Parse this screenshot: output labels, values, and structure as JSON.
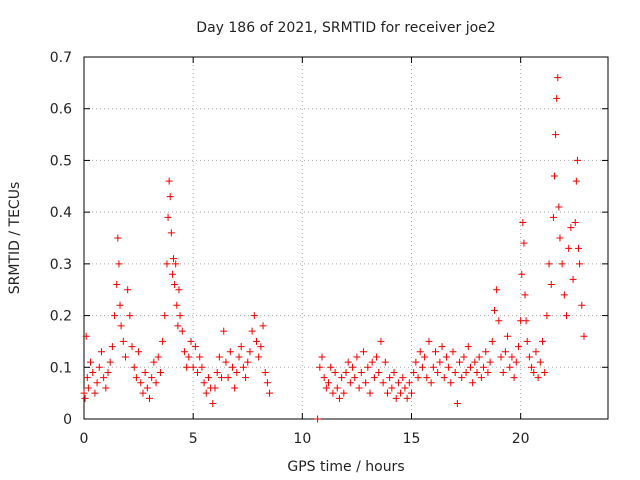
{
  "chart_data": {
    "type": "scatter",
    "title": "Day 186 of 2021, SRMTID for receiver joe2",
    "xlabel": "GPS time / hours",
    "ylabel": "SRMTID / TECUs",
    "xlim": [
      0,
      24
    ],
    "ylim": [
      0,
      0.7
    ],
    "xticks": [
      0,
      5,
      10,
      15,
      20
    ],
    "xtick_labels": [
      "0",
      "5",
      "10",
      "15",
      "20"
    ],
    "yticks": [
      0,
      0.1,
      0.2,
      0.3,
      0.4,
      0.5,
      0.6,
      0.7
    ],
    "ytick_labels": [
      "0",
      "0.1",
      "0.2",
      "0.3",
      "0.4",
      "0.5",
      "0.6",
      "0.7"
    ],
    "grid": true,
    "series": [
      {
        "name": "SRMTID",
        "marker": "+",
        "color": "#ee0000",
        "x": [
          0.0,
          0.05,
          0.1,
          0.15,
          0.2,
          0.3,
          0.4,
          0.5,
          0.6,
          0.7,
          0.8,
          0.9,
          1.0,
          1.1,
          1.2,
          1.3,
          1.4,
          1.5,
          1.55,
          1.6,
          1.65,
          1.7,
          1.8,
          1.9,
          2.0,
          2.1,
          2.2,
          2.3,
          2.4,
          2.5,
          2.6,
          2.7,
          2.8,
          2.9,
          3.0,
          3.1,
          3.2,
          3.3,
          3.4,
          3.5,
          3.6,
          3.7,
          3.8,
          3.85,
          3.9,
          3.95,
          4.0,
          4.05,
          4.1,
          4.15,
          4.2,
          4.25,
          4.3,
          4.35,
          4.4,
          4.5,
          4.6,
          4.7,
          4.8,
          4.9,
          5.0,
          5.1,
          5.2,
          5.3,
          5.4,
          5.5,
          5.6,
          5.7,
          5.8,
          5.9,
          6.0,
          6.1,
          6.2,
          6.3,
          6.4,
          6.5,
          6.6,
          6.7,
          6.8,
          6.9,
          7.0,
          7.1,
          7.2,
          7.3,
          7.4,
          7.5,
          7.6,
          7.7,
          7.8,
          7.9,
          8.0,
          8.1,
          8.2,
          8.3,
          8.4,
          8.5,
          10.7,
          10.8,
          10.9,
          11.0,
          11.1,
          11.2,
          11.3,
          11.4,
          11.5,
          11.6,
          11.7,
          11.8,
          11.9,
          12.0,
          12.1,
          12.2,
          12.3,
          12.4,
          12.5,
          12.6,
          12.7,
          12.8,
          12.9,
          13.0,
          13.1,
          13.2,
          13.3,
          13.4,
          13.5,
          13.6,
          13.7,
          13.8,
          13.9,
          14.0,
          14.1,
          14.2,
          14.3,
          14.4,
          14.5,
          14.6,
          14.7,
          14.8,
          14.9,
          15.0,
          15.1,
          15.2,
          15.3,
          15.4,
          15.5,
          15.6,
          15.7,
          15.8,
          15.9,
          16.0,
          16.1,
          16.2,
          16.3,
          16.4,
          16.5,
          16.6,
          16.7,
          16.8,
          16.9,
          17.0,
          17.1,
          17.2,
          17.3,
          17.4,
          17.5,
          17.6,
          17.7,
          17.8,
          17.9,
          18.0,
          18.1,
          18.2,
          18.3,
          18.4,
          18.5,
          18.6,
          18.7,
          18.8,
          18.9,
          19.0,
          19.1,
          19.2,
          19.3,
          19.4,
          19.5,
          19.6,
          19.7,
          19.8,
          19.9,
          20.0,
          20.05,
          20.1,
          20.15,
          20.2,
          20.25,
          20.3,
          20.4,
          20.5,
          20.6,
          20.7,
          20.8,
          20.9,
          21.0,
          21.1,
          21.2,
          21.3,
          21.4,
          21.5,
          21.55,
          21.6,
          21.65,
          21.7,
          21.75,
          21.8,
          21.9,
          22.0,
          22.1,
          22.2,
          22.3,
          22.4,
          22.5,
          22.55,
          22.6,
          22.65,
          22.7,
          22.8,
          22.9
        ],
        "y": [
          0.05,
          0.04,
          0.16,
          0.08,
          0.06,
          0.11,
          0.09,
          0.05,
          0.07,
          0.1,
          0.13,
          0.08,
          0.06,
          0.09,
          0.11,
          0.14,
          0.2,
          0.26,
          0.35,
          0.3,
          0.22,
          0.18,
          0.15,
          0.12,
          0.25,
          0.2,
          0.14,
          0.1,
          0.08,
          0.13,
          0.07,
          0.05,
          0.09,
          0.06,
          0.04,
          0.08,
          0.11,
          0.07,
          0.12,
          0.09,
          0.15,
          0.2,
          0.3,
          0.39,
          0.46,
          0.43,
          0.36,
          0.28,
          0.31,
          0.26,
          0.3,
          0.22,
          0.18,
          0.25,
          0.2,
          0.17,
          0.13,
          0.1,
          0.12,
          0.15,
          0.1,
          0.14,
          0.09,
          0.12,
          0.1,
          0.07,
          0.05,
          0.08,
          0.06,
          0.03,
          0.06,
          0.09,
          0.12,
          0.08,
          0.17,
          0.11,
          0.08,
          0.13,
          0.1,
          0.06,
          0.09,
          0.12,
          0.14,
          0.1,
          0.08,
          0.11,
          0.13,
          0.17,
          0.2,
          0.15,
          0.12,
          0.14,
          0.18,
          0.09,
          0.07,
          0.05,
          0.0,
          0.1,
          0.12,
          0.08,
          0.06,
          0.07,
          0.1,
          0.05,
          0.09,
          0.06,
          0.04,
          0.08,
          0.05,
          0.09,
          0.11,
          0.07,
          0.1,
          0.08,
          0.12,
          0.06,
          0.09,
          0.13,
          0.07,
          0.1,
          0.05,
          0.11,
          0.08,
          0.12,
          0.09,
          0.15,
          0.07,
          0.11,
          0.05,
          0.08,
          0.06,
          0.09,
          0.04,
          0.07,
          0.05,
          0.08,
          0.06,
          0.04,
          0.07,
          0.05,
          0.09,
          0.11,
          0.08,
          0.13,
          0.1,
          0.12,
          0.08,
          0.15,
          0.07,
          0.1,
          0.13,
          0.09,
          0.11,
          0.14,
          0.08,
          0.12,
          0.1,
          0.07,
          0.13,
          0.09,
          0.03,
          0.11,
          0.08,
          0.12,
          0.09,
          0.14,
          0.1,
          0.07,
          0.11,
          0.09,
          0.12,
          0.08,
          0.1,
          0.13,
          0.09,
          0.11,
          0.15,
          0.21,
          0.25,
          0.19,
          0.12,
          0.09,
          0.13,
          0.16,
          0.1,
          0.12,
          0.08,
          0.11,
          0.14,
          0.19,
          0.28,
          0.38,
          0.34,
          0.24,
          0.19,
          0.15,
          0.12,
          0.1,
          0.09,
          0.13,
          0.08,
          0.11,
          0.15,
          0.09,
          0.2,
          0.3,
          0.26,
          0.39,
          0.47,
          0.55,
          0.62,
          0.66,
          0.41,
          0.35,
          0.3,
          0.24,
          0.2,
          0.33,
          0.37,
          0.27,
          0.38,
          0.46,
          0.5,
          0.33,
          0.3,
          0.22,
          0.16
        ]
      }
    ]
  }
}
